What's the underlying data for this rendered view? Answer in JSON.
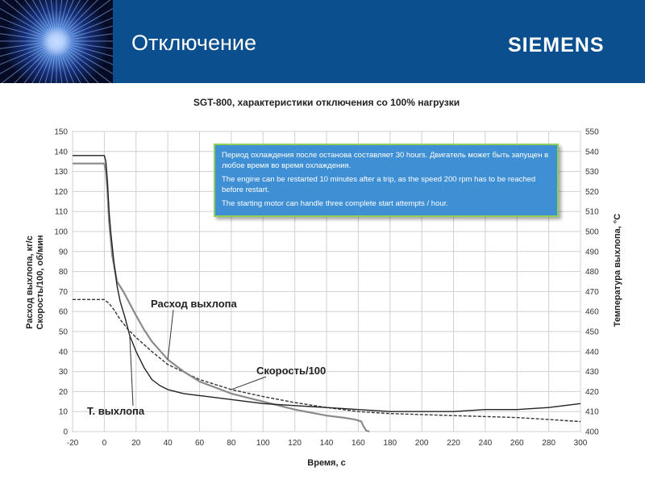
{
  "header": {
    "title": "Отключение",
    "brand": "SIEMENS",
    "colors": {
      "background": "#0b4f8e",
      "text": "#ffffff"
    }
  },
  "note": {
    "lines": [
      "Период охлаждения после останова составляет 30 hours. Двигатель может быть запущен в любое время во время охлаждения.",
      "The engine can be restarted 10 minutes after a trip, as the speed 200 rpm has to be reached before restart.",
      "The starting motor can handle three complete start attempts / hour."
    ],
    "colors": {
      "background": "#3f8fd4",
      "border": "#8fcf5a"
    }
  },
  "chart_data": {
    "type": "line",
    "title": "SGT-800, характеристики отключения со 100% нагрузки",
    "xlabel": "Время, с",
    "ylabel_lines": [
      "Расход выхлопа, кг/с",
      "Скорость/100, об/мин"
    ],
    "y2label": "Температура выхлопа, °C",
    "xlim": [
      -20,
      300
    ],
    "ylim": [
      0,
      150
    ],
    "y2lim": [
      400,
      550
    ],
    "x_ticks": [
      -20,
      0,
      20,
      40,
      60,
      80,
      100,
      120,
      140,
      160,
      180,
      200,
      220,
      240,
      260,
      280,
      300
    ],
    "y_ticks": [
      0,
      10,
      20,
      30,
      40,
      50,
      60,
      70,
      80,
      90,
      100,
      110,
      120,
      130,
      140,
      150
    ],
    "y2_ticks": [
      400,
      410,
      420,
      430,
      440,
      450,
      460,
      470,
      480,
      490,
      500,
      510,
      520,
      530,
      540,
      550
    ],
    "grid": true,
    "callouts": {
      "flow": "Расход выхлопа",
      "speed": "Скорость/100",
      "temp": "Т. выхлопа"
    },
    "series": [
      {
        "key": "speed",
        "axis": "left",
        "color": "#333333",
        "dash": true,
        "x": [
          -20,
          0,
          3,
          6,
          10,
          15,
          20,
          30,
          40,
          60,
          80,
          100,
          120,
          140,
          160,
          180,
          200,
          220,
          240,
          260,
          280,
          300
        ],
        "y": [
          66,
          66,
          64,
          61,
          56,
          51,
          47,
          40,
          33.5,
          26,
          21,
          17.5,
          14.5,
          12,
          10,
          9,
          8.5,
          8,
          7.5,
          7,
          6,
          5
        ]
      },
      {
        "key": "flow",
        "axis": "left",
        "color": "#8a8a8a",
        "dash": false,
        "x": [
          -20,
          -10,
          0,
          1,
          2,
          3,
          5,
          8,
          12,
          16,
          20,
          25,
          30,
          40,
          50,
          60,
          80,
          100,
          120,
          140,
          150,
          158,
          162,
          163,
          165,
          167
        ],
        "y": [
          134,
          134,
          134,
          130,
          120,
          105,
          88,
          75,
          70,
          64,
          58,
          51,
          45,
          36,
          30,
          25,
          19,
          15,
          11,
          8,
          7,
          6,
          5,
          3,
          0.5,
          0
        ]
      },
      {
        "key": "temp",
        "axis": "right",
        "color": "#222222",
        "dash": false,
        "x": [
          -20,
          -10,
          0,
          1,
          2,
          3,
          4,
          6,
          8,
          10,
          13,
          16,
          20,
          25,
          30,
          35,
          40,
          50,
          60,
          80,
          100,
          120,
          140,
          160,
          180,
          200,
          220,
          240,
          260,
          280,
          300
        ],
        "y": [
          538,
          538,
          538,
          535,
          525,
          510,
          500,
          485,
          473,
          465,
          457,
          448,
          440,
          432,
          426,
          423,
          421,
          419,
          418,
          416,
          414,
          413,
          412,
          411,
          410,
          410,
          410,
          411,
          411,
          412,
          414
        ]
      }
    ]
  }
}
